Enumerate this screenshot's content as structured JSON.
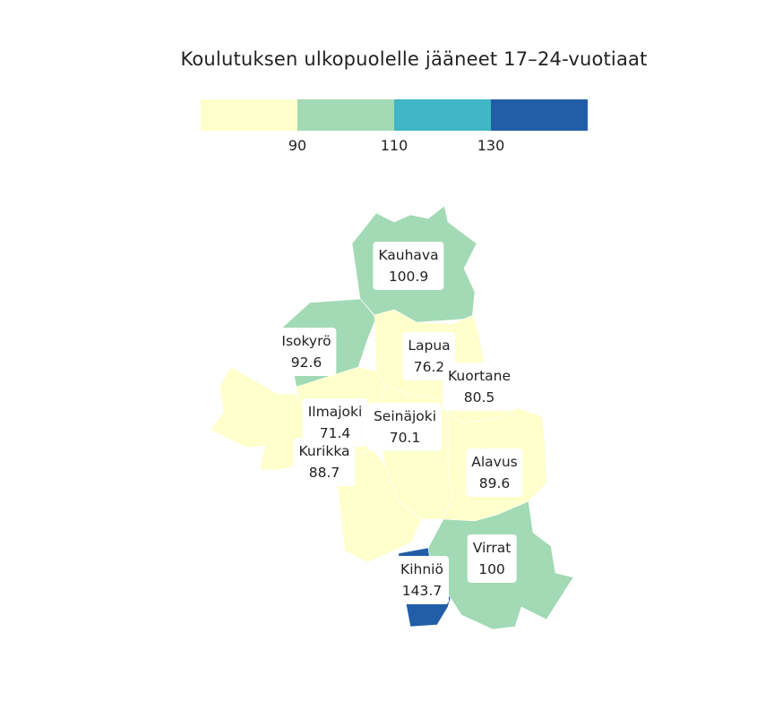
{
  "title": "Koulutuksen ulkopuolelle jääneet 17–24-vuotiaat",
  "legend": {
    "bins": [
      {
        "color": "#ffffcc"
      },
      {
        "color": "#a1dab4"
      },
      {
        "color": "#41b6c4"
      },
      {
        "color": "#225ea8"
      }
    ],
    "breaks": [
      "90",
      "110",
      "130"
    ]
  },
  "regions": [
    {
      "name": "Kauhava",
      "value": "100.9",
      "color": "#a1dab4"
    },
    {
      "name": "Isokyrö",
      "value": "92.6",
      "color": "#a1dab4"
    },
    {
      "name": "Lapua",
      "value": "76.2",
      "color": "#ffffcc"
    },
    {
      "name": "Kuortane",
      "value": "80.5",
      "color": "#ffffcc"
    },
    {
      "name": "Ilmajoki",
      "value": "71.4",
      "color": "#ffffcc"
    },
    {
      "name": "Seinäjoki",
      "value": "70.1",
      "color": "#ffffcc"
    },
    {
      "name": "Kurikka",
      "value": "88.7",
      "color": "#ffffcc"
    },
    {
      "name": "Alavus",
      "value": "89.6",
      "color": "#ffffcc"
    },
    {
      "name": "Virrat",
      "value": "100",
      "color": "#a1dab4"
    },
    {
      "name": "Kihniö",
      "value": "143.7",
      "color": "#225ea8"
    }
  ]
}
